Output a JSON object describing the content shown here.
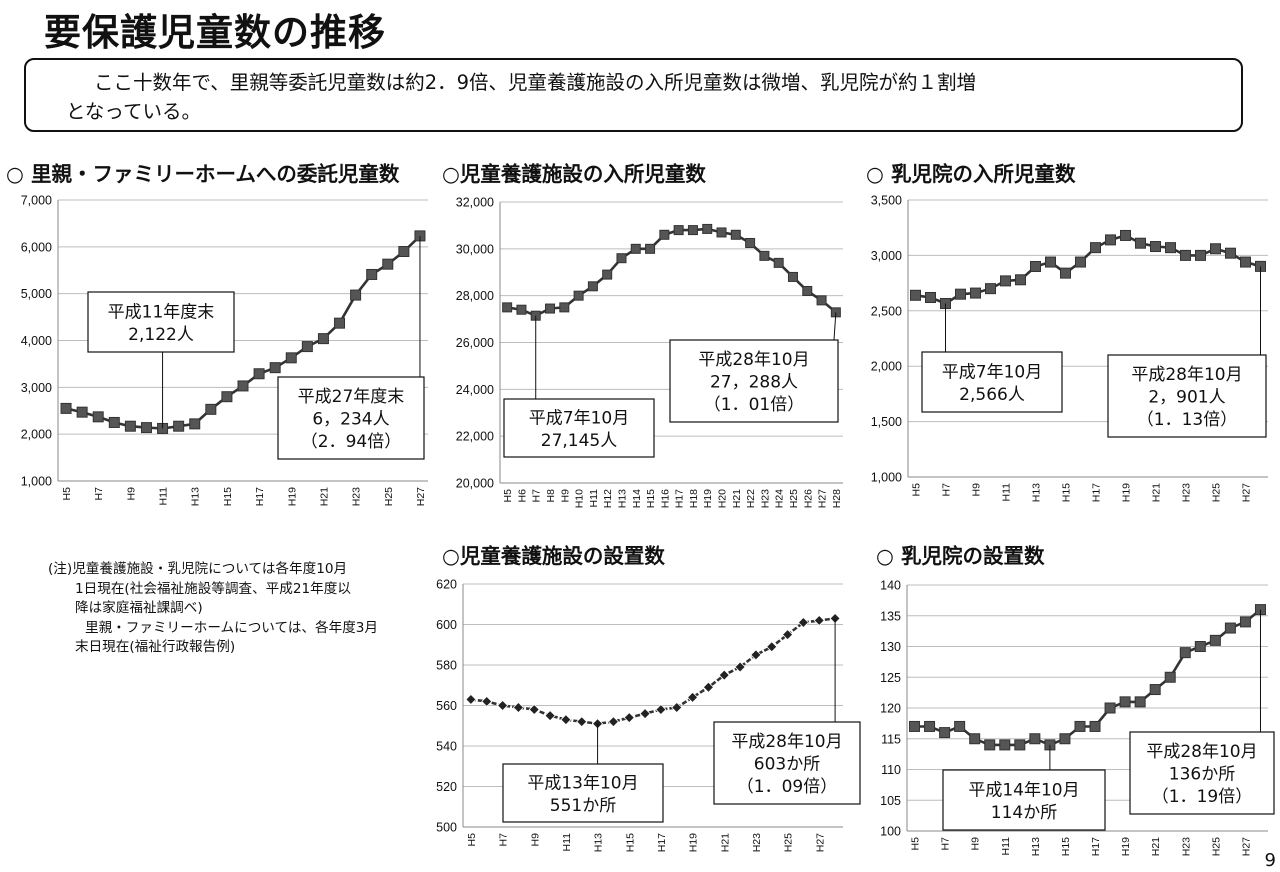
{
  "title": "要保護児童数の推移",
  "summary": {
    "line1": "ここ十数年で、里親等委託児童数は約2．9倍、児童養護施設の入所児童数は微増、乳児院が約１割増",
    "line2": "となっている。"
  },
  "note": {
    "line1": "(注)児童養護施設・乳児院については各年度10月",
    "line2": "1日現在(社会福祉施設等調査、平成21年度以",
    "line3": "降は家庭福祉課調べ)",
    "line4": "里親・ファミリーホームについては、各年度3月",
    "line5": "末日現在(福祉行政報告例)"
  },
  "page_number": "9",
  "chart_data": [
    {
      "id": "foster",
      "type": "line",
      "title": "○ 里親・ファミリーホームへの委託児童数",
      "marker": "square",
      "categories": [
        "H5",
        "H6",
        "H7",
        "H8",
        "H9",
        "H10",
        "H11",
        "H12",
        "H13",
        "H14",
        "H15",
        "H16",
        "H17",
        "H18",
        "H19",
        "H20",
        "H21",
        "H22",
        "H23",
        "H24",
        "H25",
        "H26",
        "H27"
      ],
      "tick_labels": [
        "H5",
        "",
        "H7",
        "",
        "H9",
        "",
        "H11",
        "",
        "H13",
        "",
        "H15",
        "",
        "H17",
        "",
        "H19",
        "",
        "H21",
        "",
        "H23",
        "",
        "H25",
        "",
        "H27"
      ],
      "values": [
        2550,
        2470,
        2370,
        2250,
        2170,
        2140,
        2122,
        2170,
        2220,
        2530,
        2800,
        3030,
        3290,
        3420,
        3630,
        3870,
        4040,
        4370,
        4970,
        5410,
        5630,
        5900,
        6234
      ],
      "ylim": [
        1000,
        7000
      ],
      "yticks": [
        1000,
        2000,
        3000,
        4000,
        5000,
        6000,
        7000
      ],
      "ytick_labels": [
        "1,000",
        "2,000",
        "3,000",
        "4,000",
        "5,000",
        "6,000",
        "7,000"
      ],
      "annotations": [
        {
          "lines": [
            "平成11年度末",
            "2,122人"
          ],
          "point": 6
        },
        {
          "lines": [
            "平成27年度末",
            "6，234人",
            "（2．94倍）"
          ],
          "point": 22
        }
      ]
    },
    {
      "id": "facility-residents",
      "type": "line",
      "title": "○児童養護施設の入所児童数",
      "marker": "square",
      "categories": [
        "H5",
        "H6",
        "H7",
        "H8",
        "H9",
        "H10",
        "H11",
        "H12",
        "H13",
        "H14",
        "H15",
        "H16",
        "H17",
        "H18",
        "H19",
        "H20",
        "H21",
        "H22",
        "H23",
        "H24",
        "H25",
        "H26",
        "H27",
        "H28"
      ],
      "tick_labels": [
        "H5",
        "H6",
        "H7",
        "H8",
        "H9",
        "H10",
        "H11",
        "H12",
        "H13",
        "H14",
        "H15",
        "H16",
        "H17",
        "H18",
        "H19",
        "H20",
        "H21",
        "H22",
        "H23",
        "H24",
        "H25",
        "H26",
        "H27",
        "H28"
      ],
      "values": [
        27500,
        27400,
        27145,
        27450,
        27500,
        28000,
        28400,
        28900,
        29600,
        30000,
        30000,
        30600,
        30800,
        30800,
        30850,
        30700,
        30600,
        30250,
        29700,
        29400,
        28800,
        28200,
        27800,
        27288
      ],
      "ylim": [
        20000,
        32000
      ],
      "yticks": [
        20000,
        22000,
        24000,
        26000,
        28000,
        30000,
        32000
      ],
      "ytick_labels": [
        "20,000",
        "22,000",
        "24,000",
        "26,000",
        "28,000",
        "30,000",
        "32,000"
      ],
      "annotations": [
        {
          "lines": [
            "平成7年10月",
            "27,145人"
          ],
          "point": 2
        },
        {
          "lines": [
            "平成28年10月",
            "27，288人",
            "（1．01倍）"
          ],
          "point": 23
        }
      ]
    },
    {
      "id": "infant-residents",
      "type": "line",
      "title": "○ 乳児院の入所児童数",
      "marker": "square",
      "categories": [
        "H5",
        "H6",
        "H7",
        "H8",
        "H9",
        "H10",
        "H11",
        "H12",
        "H13",
        "H14",
        "H15",
        "H16",
        "H17",
        "H18",
        "H19",
        "H20",
        "H21",
        "H22",
        "H23",
        "H24",
        "H25",
        "H26",
        "H27",
        "H28"
      ],
      "tick_labels": [
        "H5",
        "",
        "H7",
        "",
        "H9",
        "",
        "H11",
        "",
        "H13",
        "",
        "H15",
        "",
        "H17",
        "",
        "H19",
        "",
        "H21",
        "",
        "H23",
        "",
        "H25",
        "",
        "H27",
        ""
      ],
      "values": [
        2640,
        2620,
        2566,
        2650,
        2660,
        2700,
        2770,
        2780,
        2900,
        2940,
        2840,
        2940,
        3070,
        3140,
        3180,
        3110,
        3080,
        3070,
        3000,
        3000,
        3060,
        3020,
        2940,
        2901
      ],
      "ylim": [
        1000,
        3500
      ],
      "yticks": [
        1000,
        1500,
        2000,
        2500,
        3000,
        3500
      ],
      "ytick_labels": [
        "1,000",
        "1,500",
        "2,000",
        "2,500",
        "3,000",
        "3,500"
      ],
      "annotations": [
        {
          "lines": [
            "平成7年10月",
            "2,566人"
          ],
          "point": 2
        },
        {
          "lines": [
            "平成28年10月",
            "2，901人",
            "（1．13倍）"
          ],
          "point": 23
        }
      ]
    },
    {
      "id": "facility-count",
      "type": "line",
      "title": "○児童養護施設の設置数",
      "marker": "diamond",
      "categories": [
        "H5",
        "H6",
        "H7",
        "H8",
        "H9",
        "H10",
        "H11",
        "H12",
        "H13",
        "H14",
        "H15",
        "H16",
        "H17",
        "H18",
        "H19",
        "H20",
        "H21",
        "H22",
        "H23",
        "H24",
        "H25",
        "H26",
        "H27",
        "H28"
      ],
      "tick_labels": [
        "H5",
        "",
        "H7",
        "",
        "H9",
        "",
        "H11",
        "",
        "H13",
        "",
        "H15",
        "",
        "H17",
        "",
        "H19",
        "",
        "H21",
        "",
        "H23",
        "",
        "H25",
        "",
        "H27",
        ""
      ],
      "values": [
        563,
        562,
        560,
        559,
        558,
        555,
        553,
        552,
        551,
        552,
        554,
        556,
        558,
        559,
        564,
        569,
        575,
        579,
        585,
        589,
        595,
        601,
        602,
        603
      ],
      "ylim": [
        500,
        620
      ],
      "yticks": [
        500,
        520,
        540,
        560,
        580,
        600,
        620
      ],
      "ytick_labels": [
        "500",
        "520",
        "540",
        "560",
        "580",
        "600",
        "620"
      ],
      "annotations": [
        {
          "lines": [
            "平成13年10月",
            "551か所"
          ],
          "point": 8
        },
        {
          "lines": [
            "平成28年10月",
            "603か所",
            "（1．09倍）"
          ],
          "point": 23
        }
      ]
    },
    {
      "id": "infant-count",
      "type": "line",
      "title": "○ 乳児院の設置数",
      "marker": "square",
      "categories": [
        "H5",
        "H6",
        "H7",
        "H8",
        "H9",
        "H10",
        "H11",
        "H12",
        "H13",
        "H14",
        "H15",
        "H16",
        "H17",
        "H18",
        "H19",
        "H20",
        "H21",
        "H22",
        "H23",
        "H24",
        "H25",
        "H26",
        "H27",
        "H28"
      ],
      "tick_labels": [
        "H5",
        "",
        "H7",
        "",
        "H9",
        "",
        "H11",
        "",
        "H13",
        "",
        "H15",
        "",
        "H17",
        "",
        "H19",
        "",
        "H21",
        "",
        "H23",
        "",
        "H25",
        "",
        "H27",
        ""
      ],
      "values": [
        117,
        117,
        116,
        117,
        115,
        114,
        114,
        114,
        115,
        114,
        115,
        117,
        117,
        120,
        121,
        121,
        123,
        125,
        129,
        130,
        131,
        133,
        134,
        136
      ],
      "ylim": [
        100,
        140
      ],
      "yticks": [
        100,
        105,
        110,
        115,
        120,
        125,
        130,
        135,
        140
      ],
      "ytick_labels": [
        "100",
        "105",
        "110",
        "115",
        "120",
        "125",
        "130",
        "135",
        "140"
      ],
      "annotations": [
        {
          "lines": [
            "平成14年10月",
            "114か所"
          ],
          "point": 9
        },
        {
          "lines": [
            "平成28年10月",
            "136か所",
            "（1．19倍）"
          ],
          "point": 23
        }
      ]
    }
  ]
}
